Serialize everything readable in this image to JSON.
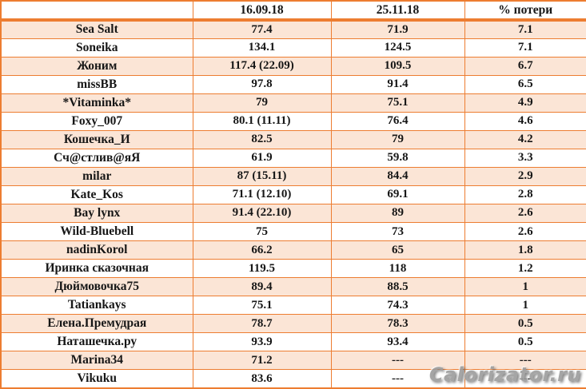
{
  "chart_data": {
    "type": "table",
    "columns": [
      "",
      "16.09.18",
      "25.11.18",
      "% потери"
    ],
    "rows": [
      [
        "Sea Salt",
        "77.4",
        "71.9",
        "7.1"
      ],
      [
        "Soneika",
        "134.1",
        "124.5",
        "7.1"
      ],
      [
        "Жоним",
        "117.4 (22.09)",
        "109.5",
        "6.7"
      ],
      [
        "missBB",
        "97.8",
        "91.4",
        "6.5"
      ],
      [
        "*Vitaminka*",
        "79",
        "75.1",
        "4.9"
      ],
      [
        "Foxy_007",
        "80.1 (11.11)",
        "76.4",
        "4.6"
      ],
      [
        "Кошечка_И",
        "82.5",
        "79",
        "4.2"
      ],
      [
        "Сч@стлив@яЯ",
        "61.9",
        "59.8",
        "3.3"
      ],
      [
        "milar",
        "87 (15.11)",
        "84.4",
        "2.9"
      ],
      [
        "Kate_Kos",
        "71.1 (12.10)",
        "69.1",
        "2.8"
      ],
      [
        "Bay lynx",
        "91.4 (22.10)",
        "89",
        "2.6"
      ],
      [
        "Wild-Bluebell",
        "75",
        "73",
        "2.6"
      ],
      [
        "nadinKorol",
        "66.2",
        "65",
        "1.8"
      ],
      [
        "Иринка сказочная",
        "119.5",
        "118",
        "1.2"
      ],
      [
        "Дюймовочка75",
        "89.4",
        "88.5",
        "1"
      ],
      [
        "Tatiankays",
        "75.1",
        "74.3",
        "1"
      ],
      [
        "Елена.Премудрая",
        "78.7",
        "78.3",
        "0.5"
      ],
      [
        "Наташечка.ру",
        "93.9",
        "93.4",
        "0.5"
      ],
      [
        "Marina34",
        "71.2",
        "---",
        "---"
      ],
      [
        "Vikuku",
        "83.6",
        "---",
        "---"
      ]
    ]
  },
  "watermark": {
    "text": "Calorizator.ru"
  },
  "colors": {
    "border_orange": "#ED7D31",
    "row_fill_peach": "#FBE5D6",
    "header_bg": "#FFFFFF",
    "text": "#161616",
    "watermark_gray": "#9C9C9C"
  }
}
